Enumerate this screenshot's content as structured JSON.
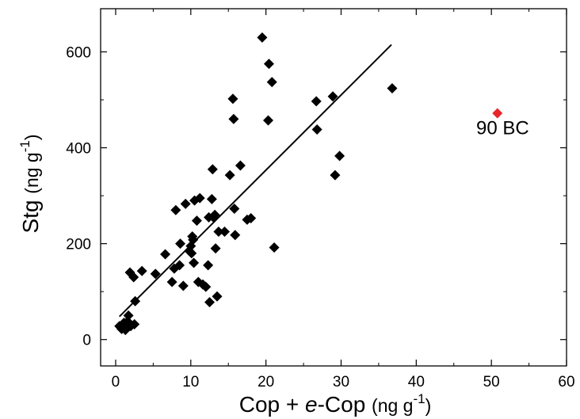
{
  "chart_data": {
    "type": "scatter",
    "xlabel": {
      "parts": [
        "Cop + ",
        "e",
        "-Cop "
      ],
      "unit_open": "(ng g",
      "unit_sup": "-1",
      "unit_close": ")"
    },
    "ylabel": {
      "main": "Stg ",
      "unit_open": "(ng g",
      "unit_sup": "-1",
      "unit_close": ")"
    },
    "xlim": [
      -2,
      60
    ],
    "ylim": [
      -55,
      690
    ],
    "x_ticks": [
      0,
      10,
      20,
      30,
      40,
      50,
      60
    ],
    "y_ticks": [
      0,
      200,
      400,
      600
    ],
    "grid": false,
    "series": [
      {
        "marker": "diamond",
        "color": "#000000",
        "points": [
          [
            0.5,
            28
          ],
          [
            0.8,
            22
          ],
          [
            1.0,
            30
          ],
          [
            1.1,
            35
          ],
          [
            1.2,
            25
          ],
          [
            1.3,
            20
          ],
          [
            1.4,
            32
          ],
          [
            1.5,
            24
          ],
          [
            1.6,
            38
          ],
          [
            1.7,
            50
          ],
          [
            2.0,
            28
          ],
          [
            2.5,
            32
          ],
          [
            2.6,
            80
          ],
          [
            1.9,
            140
          ],
          [
            2.4,
            130
          ],
          [
            3.5,
            143
          ],
          [
            5.3,
            137
          ],
          [
            6.6,
            178
          ],
          [
            7.5,
            120
          ],
          [
            7.8,
            148
          ],
          [
            8.0,
            270
          ],
          [
            8.5,
            155
          ],
          [
            8.6,
            200
          ],
          [
            9.0,
            112
          ],
          [
            9.3,
            283
          ],
          [
            9.8,
            185
          ],
          [
            10.0,
            195
          ],
          [
            10.1,
            180
          ],
          [
            10.2,
            215
          ],
          [
            10.3,
            208
          ],
          [
            10.4,
            160
          ],
          [
            10.5,
            290
          ],
          [
            10.8,
            248
          ],
          [
            11.0,
            120
          ],
          [
            11.2,
            295
          ],
          [
            11.6,
            115
          ],
          [
            12.0,
            110
          ],
          [
            12.3,
            155
          ],
          [
            12.4,
            255
          ],
          [
            12.5,
            78
          ],
          [
            12.8,
            293
          ],
          [
            12.9,
            355
          ],
          [
            13.0,
            255
          ],
          [
            13.2,
            260
          ],
          [
            13.3,
            190
          ],
          [
            13.5,
            90
          ],
          [
            13.7,
            225
          ],
          [
            14.5,
            225
          ],
          [
            15.2,
            343
          ],
          [
            15.6,
            502
          ],
          [
            15.7,
            460
          ],
          [
            15.8,
            273
          ],
          [
            15.9,
            218
          ],
          [
            16.6,
            363
          ],
          [
            17.5,
            250
          ],
          [
            18.0,
            253
          ],
          [
            19.5,
            630
          ],
          [
            20.3,
            457
          ],
          [
            20.4,
            575
          ],
          [
            20.8,
            537
          ],
          [
            21.1,
            192
          ],
          [
            26.7,
            497
          ],
          [
            26.8,
            438
          ],
          [
            28.9,
            507
          ],
          [
            29.2,
            343
          ],
          [
            29.8,
            383
          ],
          [
            36.8,
            524
          ]
        ]
      },
      {
        "marker": "diamond",
        "color": "#e8262a",
        "points": [
          [
            50.8,
            472
          ]
        ]
      }
    ],
    "fit_line": {
      "from": [
        0.5,
        48
      ],
      "to": [
        36.7,
        615
      ],
      "color": "#000000"
    },
    "annotations": [
      {
        "text": "90 BC",
        "x": 51.5,
        "y": 428
      }
    ]
  }
}
